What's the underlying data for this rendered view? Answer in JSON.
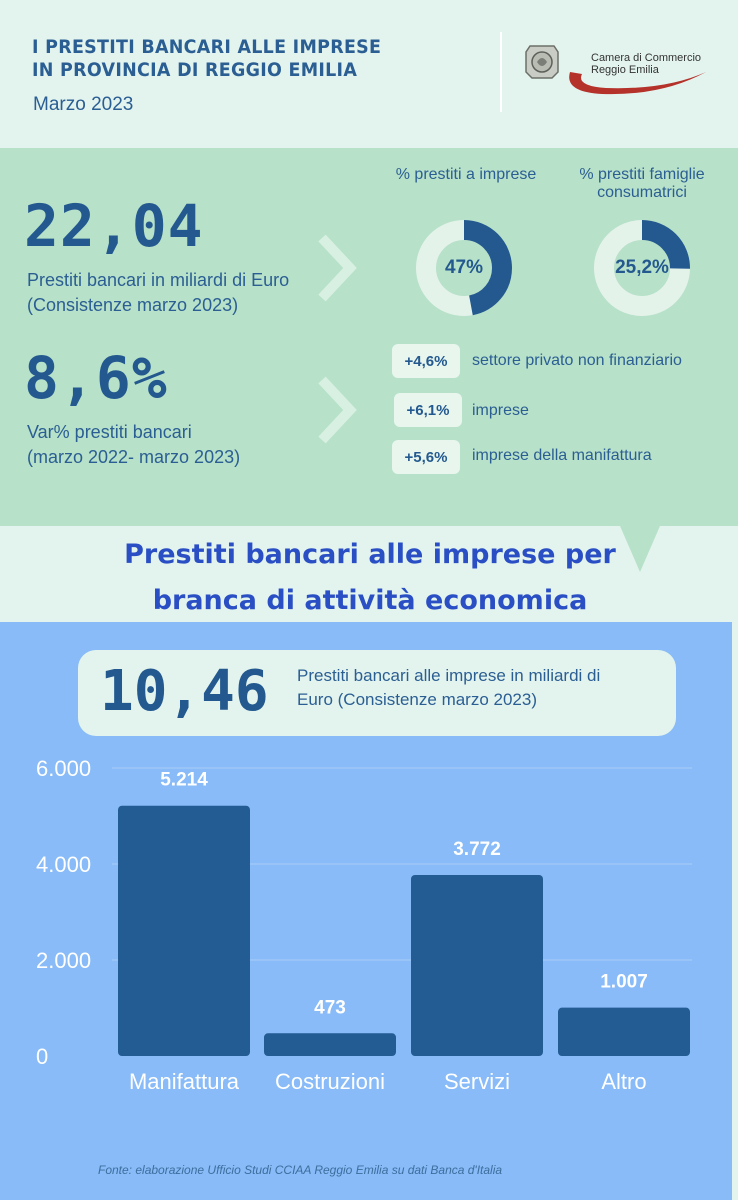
{
  "header": {
    "title_line1": "I PRESTITI BANCARI ALLE IMPRESE",
    "title_line2": "IN PROVINCIA DI REGGIO EMILIA",
    "date": "Marzo 2023",
    "logo_line1": "Camera di Commercio",
    "logo_line2": "Reggio Emilia",
    "logo_color": "#b5322b"
  },
  "stats": {
    "total_loans_value": "22,04",
    "total_loans_desc1": "Prestiti bancari in miliardi di Euro",
    "total_loans_desc2": "(Consistenze marzo 2023)",
    "var_value": "8,6%",
    "var_desc1": "Var% prestiti bancari",
    "var_desc2": "(marzo 2022- marzo 2023)"
  },
  "donuts": [
    {
      "label_line1": "%  prestiti a imprese",
      "label_line2": "",
      "value_text": "47%",
      "fraction": 0.47
    },
    {
      "label_line1": "% prestiti famiglie",
      "label_line2": "consumatrici",
      "value_text": "25,2%",
      "fraction": 0.252
    }
  ],
  "variations": [
    {
      "value": "+4,6%",
      "label": "settore privato non finanziario"
    },
    {
      "value": "+6,1%",
      "label": "imprese"
    },
    {
      "value": "+5,6%",
      "label": "imprese della manifattura"
    }
  ],
  "section": {
    "title_line1": "Prestiti bancari alle imprese per",
    "title_line2": "branca di attività economica"
  },
  "business_loans": {
    "value": "10,46",
    "desc1": "Prestiti bancari alle imprese in miliardi di",
    "desc2": "Euro (Consistenze marzo 2023)"
  },
  "chart_data": {
    "type": "bar",
    "categories": [
      "Manifattura",
      "Costruzioni",
      "Servizi",
      "Altro"
    ],
    "values": [
      5214,
      473,
      3772,
      1007
    ],
    "value_labels": [
      "5.214",
      "473",
      "3.772",
      "1.007"
    ],
    "yticks": [
      0,
      2000,
      4000,
      6000
    ],
    "ytick_labels": [
      "0",
      "2.000",
      "4.000",
      "6.000"
    ],
    "ylim": [
      0,
      6000
    ],
    "grid": true,
    "bar_color": "#235b93"
  },
  "footer": {
    "source": "Fonte: elaborazione Ufficio Studi CCIAA Reggio Emilia su dati Banca d'Italia"
  }
}
